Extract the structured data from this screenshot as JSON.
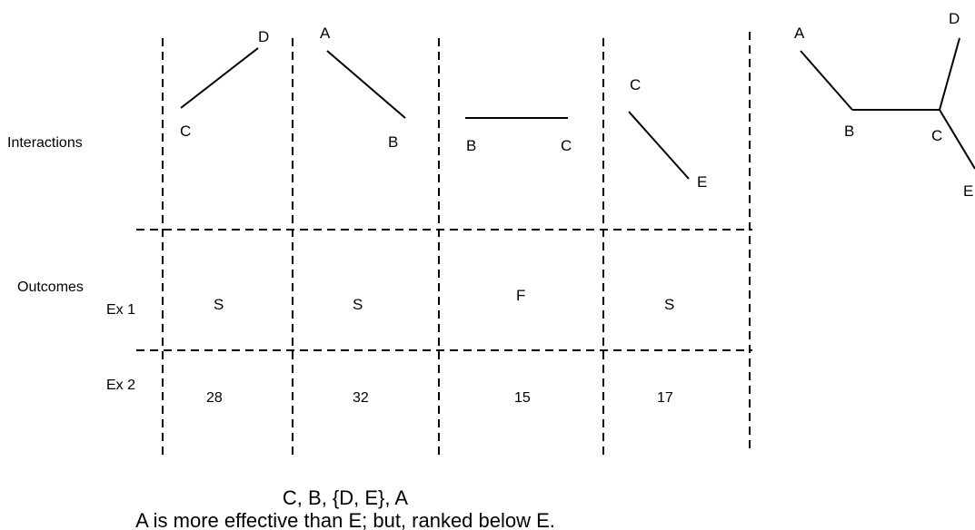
{
  "row_labels": {
    "interactions": "Interactions",
    "outcomes": "Outcomes",
    "ex1": "Ex 1",
    "ex2": "Ex 2"
  },
  "interactions": [
    {
      "from": "C",
      "to": "D"
    },
    {
      "from": "A",
      "to": "B"
    },
    {
      "from": "B",
      "to": "C"
    },
    {
      "from": "C",
      "to": "E"
    }
  ],
  "ex1_outcomes": [
    "S",
    "S",
    "F",
    "S"
  ],
  "ex2_outcomes": [
    "28",
    "32",
    "15",
    "17"
  ],
  "tree": {
    "nodes": [
      "A",
      "B",
      "C",
      "D",
      "E"
    ],
    "edges": [
      [
        "A",
        "B"
      ],
      [
        "B",
        "C"
      ],
      [
        "C",
        "D"
      ],
      [
        "C",
        "E"
      ]
    ]
  },
  "caption": {
    "ranking": "C, B, {D, E}, A",
    "note": "A is more effective than E; but, ranked below E."
  }
}
